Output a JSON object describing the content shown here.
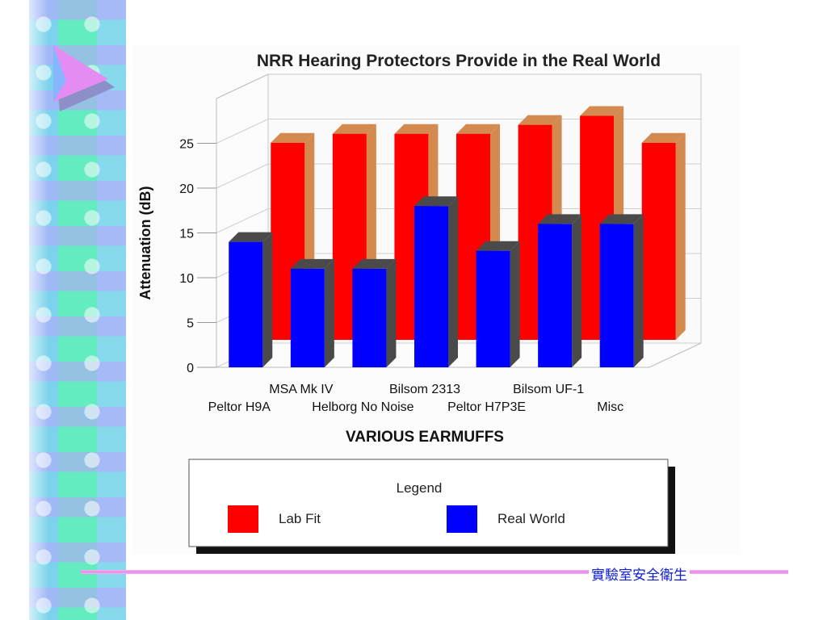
{
  "footer": {
    "text": "實驗室安全衛生"
  },
  "colors": {
    "lab_fit_front": "#ff0000",
    "lab_fit_side": "#d48a4e",
    "real_world_front": "#0000ff",
    "real_world_side": "#4a4a4a",
    "title_text": "#222222"
  },
  "chart_data": {
    "type": "bar",
    "title": "NRR Hearing Protectors Provide in the Real World",
    "xlabel": "VARIOUS EARMUFFS",
    "ylabel": "Attenuation (dB)",
    "ylim": [
      0,
      25
    ],
    "yticks": [
      0,
      5,
      10,
      15,
      20,
      25
    ],
    "categories": [
      "Peltor H9A",
      "MSA Mk IV",
      "Helborg No Noise",
      "Bilsom 2313",
      "Peltor H7P3E",
      "Bilsom UF-1",
      "Misc"
    ],
    "category_label_rows": [
      "lower",
      "upper",
      "lower",
      "upper",
      "lower",
      "upper",
      "lower"
    ],
    "series": [
      {
        "name": "Lab Fit",
        "values": [
          22,
          23,
          23,
          23,
          24,
          25,
          22
        ]
      },
      {
        "name": "Real World",
        "values": [
          14,
          11,
          11,
          18,
          13,
          16,
          16
        ]
      }
    ],
    "legend": {
      "title": "Legend",
      "placement": "bottom",
      "entries": [
        "Lab Fit",
        "Real World"
      ]
    },
    "grid": true,
    "projection": "3d-bars"
  }
}
